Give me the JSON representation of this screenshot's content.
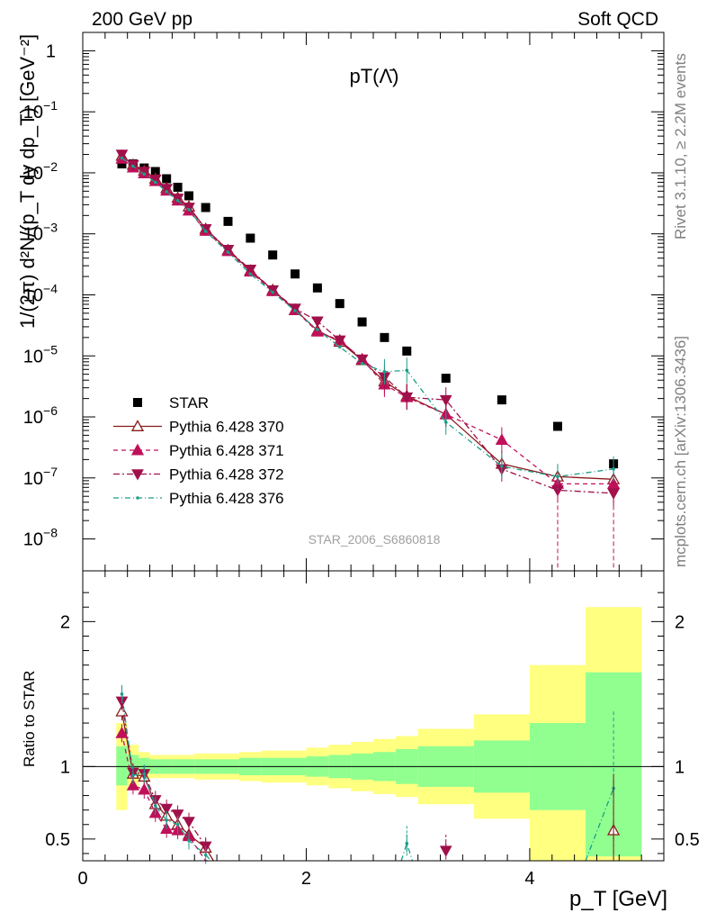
{
  "header": {
    "left": "200 GeV pp",
    "right": "Soft QCD"
  },
  "side_labels": {
    "rivet": "Rivet 3.1.10, ≥ 2.2M events",
    "mcplots": "mcplots.cern.ch [arXiv:1306.3436]"
  },
  "watermark": "STAR_2006_S6860818",
  "chart_data": [
    {
      "type": "scatter",
      "title": "pT(Λ̄)",
      "ylabel": "1/(2π) d²N/(p_T dy dp_T) [GeV⁻²]",
      "yscale": "log",
      "ylim": [
        3e-09,
        2
      ],
      "xlim": [
        0,
        5.2
      ],
      "yticks": [
        {
          "v": 1,
          "label": "1",
          "exp": ""
        },
        {
          "v": 0.1,
          "label": "10",
          "exp": "−1"
        },
        {
          "v": 0.01,
          "label": "10",
          "exp": "−2"
        },
        {
          "v": 0.001,
          "label": "10",
          "exp": "−3"
        },
        {
          "v": 0.0001,
          "label": "10",
          "exp": "−4"
        },
        {
          "v": 1e-05,
          "label": "10",
          "exp": "−5"
        },
        {
          "v": 1e-06,
          "label": "10",
          "exp": "−6"
        },
        {
          "v": 1e-07,
          "label": "10",
          "exp": "−7"
        },
        {
          "v": 1e-08,
          "label": "10",
          "exp": "−8"
        }
      ],
      "legend_position": "bottom-left",
      "series": [
        {
          "name": "STAR",
          "color": "#000000",
          "marker": "square",
          "x": [
            0.35,
            0.45,
            0.55,
            0.65,
            0.75,
            0.85,
            0.95,
            1.1,
            1.3,
            1.5,
            1.7,
            1.9,
            2.1,
            2.3,
            2.5,
            2.7,
            2.9,
            3.25,
            3.75,
            4.25,
            4.75
          ],
          "y": [
            0.014,
            0.014,
            0.012,
            0.0105,
            0.008,
            0.0058,
            0.0042,
            0.0027,
            0.0016,
            0.00085,
            0.00045,
            0.00022,
            0.00013,
            7.2e-05,
            3.6e-05,
            2e-05,
            1.2e-05,
            4.3e-06,
            1.9e-06,
            7e-07,
            1.7e-07
          ]
        },
        {
          "name": "Pythia 6.428 370",
          "color": "#8b1a1a",
          "marker": "triangle-up-open",
          "dash": "",
          "x": [
            0.35,
            0.45,
            0.55,
            0.65,
            0.75,
            0.85,
            0.95,
            1.1,
            1.3,
            1.5,
            1.7,
            1.9,
            2.1,
            2.3,
            2.5,
            2.7,
            2.9,
            3.25,
            3.75,
            4.25,
            4.75
          ],
          "y": [
            0.019,
            0.0135,
            0.0108,
            0.008,
            0.0056,
            0.0039,
            0.0028,
            0.0012,
            0.00054,
            0.00025,
            0.00012,
            5.7e-05,
            2.6e-05,
            1.7e-05,
            8.5e-06,
            3.8e-06,
            2.2e-06,
            1.1e-06,
            1.7e-07,
            1.05e-07,
            9.5e-08
          ]
        },
        {
          "name": "Pythia 6.428 371",
          "color": "#c0105a",
          "marker": "triangle-up",
          "dash": "5,4",
          "x": [
            0.35,
            0.45,
            0.55,
            0.65,
            0.75,
            0.85,
            0.95,
            1.1,
            1.3,
            1.5,
            1.7,
            1.9,
            2.1,
            2.3,
            2.5,
            2.7,
            2.9,
            3.25,
            3.75,
            4.25,
            4.75
          ],
          "y": [
            0.017,
            0.0122,
            0.0098,
            0.0073,
            0.0051,
            0.0035,
            0.0024,
            0.00112,
            0.00052,
            0.00024,
            0.000115,
            5.6e-05,
            2.5e-05,
            1.8e-05,
            8.8e-06,
            3.4e-06,
            2.1e-06,
            1.1e-06,
            4.2e-07,
            8e-08,
            8e-08
          ]
        },
        {
          "name": "Pythia 6.428 372",
          "color": "#a0104a",
          "marker": "triangle-down",
          "dash": "7,3,2,3",
          "x": [
            0.35,
            0.45,
            0.55,
            0.65,
            0.75,
            0.85,
            0.95,
            1.1,
            1.3,
            1.5,
            1.7,
            1.9,
            2.1,
            2.3,
            2.5,
            2.7,
            2.9,
            3.25,
            3.75,
            4.25,
            4.75
          ],
          "y": [
            0.02,
            0.0135,
            0.0105,
            0.0078,
            0.0055,
            0.0038,
            0.0027,
            0.0012,
            0.00055,
            0.00026,
            0.00012,
            6e-05,
            3.7e-05,
            1.8e-05,
            8.8e-06,
            4.5e-06,
            2.1e-06,
            1.9e-06,
            1.4e-07,
            6.3e-08,
            5.6e-08
          ]
        },
        {
          "name": "Pythia 6.428 376",
          "color": "#1a9e8a",
          "marker": "dot",
          "dash": "6,3,1,3",
          "x": [
            0.35,
            0.45,
            0.55,
            0.65,
            0.75,
            0.85,
            0.95,
            1.1,
            1.3,
            1.5,
            1.7,
            1.9,
            2.1,
            2.3,
            2.5,
            2.7,
            2.9,
            3.25,
            3.75,
            4.25,
            4.75
          ],
          "y": [
            0.0175,
            0.0128,
            0.0095,
            0.007,
            0.0049,
            0.0035,
            0.0025,
            0.0011,
            0.0005,
            0.00022,
            0.00011,
            5.5e-05,
            2.7e-05,
            1.4e-05,
            7.5e-06,
            5.5e-06,
            5.8e-06,
            8.2e-07,
            1.55e-07,
            1.05e-07,
            1.4e-07
          ]
        }
      ]
    },
    {
      "type": "scatter",
      "ylabel": "Ratio to STAR",
      "xlabel": "p_T [GeV]",
      "ylim": [
        0.35,
        2.35
      ],
      "xlim": [
        0,
        5.2
      ],
      "xticks": [
        0,
        2,
        4
      ],
      "yticks": [
        0.5,
        1,
        2
      ],
      "bands": [
        {
          "x0": 0.3,
          "x1": 0.4,
          "y1": [
            0.87,
            1.14
          ],
          "y2": [
            0.7,
            1.3
          ]
        },
        {
          "x0": 0.4,
          "x1": 0.5,
          "y1": [
            0.93,
            1.08
          ],
          "y2": [
            0.86,
            1.15
          ]
        },
        {
          "x0": 0.5,
          "x1": 0.6,
          "y1": [
            0.95,
            1.06
          ],
          "y2": [
            0.91,
            1.1
          ]
        },
        {
          "x0": 0.6,
          "x1": 0.8,
          "y1": [
            0.95,
            1.05
          ],
          "y2": [
            0.92,
            1.08
          ]
        },
        {
          "x0": 0.8,
          "x1": 1.0,
          "y1": [
            0.95,
            1.05
          ],
          "y2": [
            0.92,
            1.08
          ]
        },
        {
          "x0": 1.0,
          "x1": 1.4,
          "y1": [
            0.95,
            1.05
          ],
          "y2": [
            0.91,
            1.09
          ]
        },
        {
          "x0": 1.4,
          "x1": 1.6,
          "y1": [
            0.94,
            1.06
          ],
          "y2": [
            0.9,
            1.1
          ]
        },
        {
          "x0": 1.6,
          "x1": 2.0,
          "y1": [
            0.94,
            1.06
          ],
          "y2": [
            0.89,
            1.11
          ]
        },
        {
          "x0": 2.0,
          "x1": 2.2,
          "y1": [
            0.93,
            1.07
          ],
          "y2": [
            0.87,
            1.13
          ]
        },
        {
          "x0": 2.2,
          "x1": 2.4,
          "y1": [
            0.92,
            1.08
          ],
          "y2": [
            0.85,
            1.15
          ]
        },
        {
          "x0": 2.4,
          "x1": 2.6,
          "y1": [
            0.91,
            1.09
          ],
          "y2": [
            0.83,
            1.17
          ]
        },
        {
          "x0": 2.6,
          "x1": 2.8,
          "y1": [
            0.9,
            1.1
          ],
          "y2": [
            0.81,
            1.19
          ]
        },
        {
          "x0": 2.8,
          "x1": 3.0,
          "y1": [
            0.88,
            1.12
          ],
          "y2": [
            0.79,
            1.21
          ]
        },
        {
          "x0": 3.0,
          "x1": 3.5,
          "y1": [
            0.86,
            1.14
          ],
          "y2": [
            0.74,
            1.26
          ]
        },
        {
          "x0": 3.5,
          "x1": 4.0,
          "y1": [
            0.82,
            1.18
          ],
          "y2": [
            0.64,
            1.36
          ]
        },
        {
          "x0": 4.0,
          "x1": 4.5,
          "y1": [
            0.7,
            1.3
          ],
          "y2": [
            0.35,
            1.7
          ]
        },
        {
          "x0": 4.5,
          "x1": 5.0,
          "y1": [
            0.38,
            1.65
          ],
          "y2": [
            0.35,
            2.1
          ]
        }
      ],
      "series": [
        {
          "name": "Pythia 6.428 370",
          "x": [
            0.35,
            0.45,
            0.55,
            0.65,
            0.75,
            0.85,
            0.95,
            1.1,
            1.17,
            4.75
          ],
          "y": [
            1.38,
            0.95,
            0.93,
            0.74,
            0.66,
            0.6,
            0.53,
            0.44,
            0.35,
            0.56
          ]
        },
        {
          "name": "Pythia 6.428 371",
          "x": [
            0.35,
            0.45,
            0.55,
            0.65,
            0.75,
            0.85,
            0.95,
            1.1,
            1.15
          ],
          "y": [
            1.23,
            0.87,
            0.84,
            0.68,
            0.57,
            0.56,
            0.52,
            0.35,
            0.35
          ]
        },
        {
          "name": "Pythia 6.428 372",
          "x": [
            0.35,
            0.45,
            0.55,
            0.65,
            0.75,
            0.85,
            0.95,
            1.1,
            3.25
          ],
          "y": [
            1.45,
            0.96,
            0.95,
            0.77,
            0.71,
            0.67,
            0.62,
            0.45,
            0.42
          ]
        },
        {
          "name": "Pythia 6.428 376",
          "x": [
            0.35,
            0.45,
            0.55,
            0.65,
            0.75,
            0.85,
            0.95,
            1.1,
            1.15,
            2.85,
            2.9,
            2.95,
            4.5,
            4.75
          ],
          "y": [
            1.5,
            0.94,
            0.95,
            0.73,
            0.63,
            0.6,
            0.49,
            0.39,
            0.35,
            0.35,
            0.47,
            0.35,
            0.35,
            0.85
          ]
        }
      ]
    }
  ]
}
